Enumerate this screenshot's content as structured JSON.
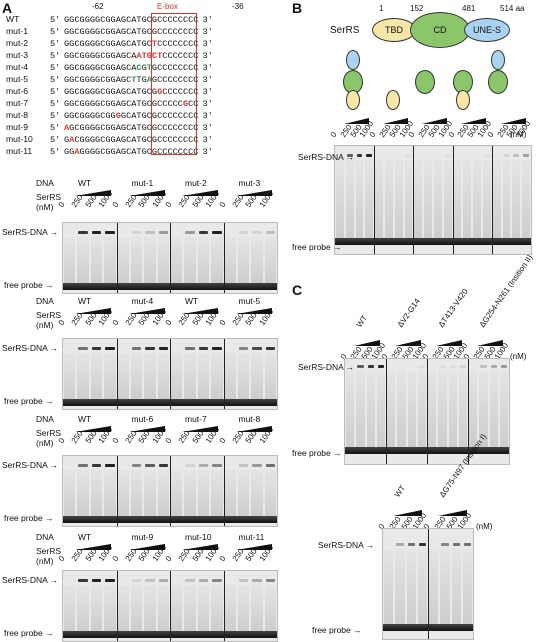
{
  "panels": {
    "a": "A",
    "b": "B",
    "c": "C"
  },
  "panel_a": {
    "pos_left": "-62",
    "pos_right": "-36",
    "ebox_label": "E-box",
    "sequences": [
      {
        "name": "WT",
        "p5": "5′",
        "seq": "GGCGGGGCGGAGCATGCGCCCCCCCC",
        "p3": "3′"
      },
      {
        "name": "mut-1",
        "p5": "5′",
        "seq": "GGCGGGGCGGAGCATGCGCCCCCCCC",
        "p3": "3′"
      },
      {
        "name": "mut-2",
        "p5": "5′",
        "seq": "GGCGGGGCGGAGCATGCTCCCCCCCC",
        "p3": "3′"
      },
      {
        "name": "mut-3",
        "p5": "5′",
        "seq": "GGCGGGGCGGAGCAATGCTCCCCCCC",
        "p3": "3′"
      },
      {
        "name": "mut-4",
        "p5": "5′",
        "seq": "GGCGGGGCGGAGCACGTGCCCCCCCC",
        "p3": "3′"
      },
      {
        "name": "mut-5",
        "p5": "5′",
        "seq": "GGCGGGGCGGAGCTTGAGCCCCCCCC",
        "p3": "3′"
      },
      {
        "name": "mut-6",
        "p5": "5′",
        "seq": "GGCGGGGCGGAGCATGCGGCCCCCCC",
        "p3": "3′"
      },
      {
        "name": "mut-7",
        "p5": "5′",
        "seq": "GGCGGGGCGGAGCATGCGCCCCCGCC",
        "p3": "3′"
      },
      {
        "name": "mut-8",
        "p5": "5′",
        "seq": "GGCGGGGCGGGGCATGCGCCCCCCCC",
        "p3": "3′"
      },
      {
        "name": "mut-9",
        "p5": "5′",
        "seq": "AGCGGGGCGGAGCATGCGCCCCCCCC",
        "p3": "3′"
      },
      {
        "name": "mut-10",
        "p5": "5′",
        "seq": "GACGGGGCGGAGCATGCGCCCCCCCC",
        "p3": "3′"
      },
      {
        "name": "mut-11",
        "p5": "5′",
        "seq": "GGAGGGGCGGAGCATGCGCCCCCCCC",
        "p3": "3′"
      }
    ],
    "dna_label": "DNA",
    "serrs_label": "SerRS",
    "nm_label": "(nM)",
    "conc": [
      "0",
      "250",
      "500",
      "1000"
    ],
    "complex_label": "SerRS-DNA",
    "free_label": "free probe",
    "gel_groups": [
      [
        "WT",
        "mut-1",
        "mut-2",
        "mut-3"
      ],
      [
        "WT",
        "mut-4",
        "WT",
        "mut-5"
      ],
      [
        "WT",
        "mut-6",
        "mut-7",
        "mut-8"
      ],
      [
        "WT",
        "mut-9",
        "mut-10",
        "mut-11"
      ]
    ]
  },
  "panel_b": {
    "protein": "SerRS",
    "pos": [
      "1",
      "152",
      "481",
      "514 aa"
    ],
    "domains": [
      "TBD",
      "CD",
      "UNE-S"
    ],
    "colors": {
      "tbd": "#f6e7a6",
      "cd": "#8cc66a",
      "une": "#a9d3ef"
    },
    "conc": [
      "0",
      "250",
      "500",
      "1000"
    ],
    "nm_label": "(nM)",
    "complex_label": "SerRS-DNA",
    "free_label": "free probe"
  },
  "panel_c": {
    "gel1_labels": [
      "WT",
      "ΔV2-G14",
      "ΔT413-V420",
      "ΔG254-N261\n(Insition II)"
    ],
    "gel2_labels": [
      "WT",
      "ΔG75-N97\n(Insition I)"
    ],
    "conc": [
      "0",
      "250",
      "500",
      "1000"
    ],
    "nm_label": "(nM)",
    "complex_label": "SerRS-DNA",
    "free_label": "free probe"
  }
}
